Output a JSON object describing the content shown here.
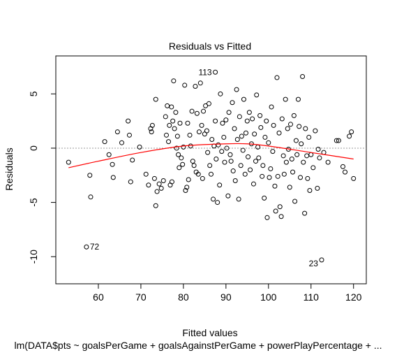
{
  "chart_data": {
    "type": "scatter",
    "title": "Residuals vs Fitted",
    "xlabel": "Fitted values",
    "ylabel": "Residuals",
    "subtitle": "lm(DATA$pts ~ goalsPerGame + goalsAgainstPerGame + powerPlayPercentage + ...",
    "xlim": [
      50,
      123
    ],
    "ylim": [
      -12.5,
      8.5
    ],
    "x_ticks": [
      60,
      70,
      80,
      90,
      100,
      110,
      120
    ],
    "y_ticks": [
      -10,
      -5,
      0,
      5
    ],
    "x_tick_labels": [
      "60",
      "70",
      "80",
      "90",
      "100",
      "110",
      "120"
    ],
    "y_tick_labels": [
      "-10",
      "-5",
      "0",
      "5"
    ],
    "reference_line": 0,
    "labeled_points": [
      {
        "label": "113",
        "x": 87.5,
        "y": 7.0
      },
      {
        "label": "72",
        "x": 57.2,
        "y": -9.1
      },
      {
        "label": "23",
        "x": 112.5,
        "y": -10.3
      }
    ],
    "smooth_line": {
      "x": [
        53,
        60,
        70,
        80,
        90,
        95,
        100,
        110,
        120
      ],
      "y": [
        -1.8,
        -1.2,
        -0.4,
        0.2,
        0.4,
        0.4,
        0.2,
        -0.4,
        -1.0
      ]
    },
    "points": [
      [
        53,
        -1.3
      ],
      [
        58,
        -2.5
      ],
      [
        58.2,
        -4.5
      ],
      [
        61.5,
        0.6
      ],
      [
        62.5,
        -0.6
      ],
      [
        63.3,
        -1.5
      ],
      [
        63.5,
        -2.7
      ],
      [
        64.5,
        1.5
      ],
      [
        65.5,
        0.5
      ],
      [
        67,
        2.5
      ],
      [
        67.3,
        1.2
      ],
      [
        67.6,
        -3.1
      ],
      [
        68,
        -1.1
      ],
      [
        69.7,
        0.1
      ],
      [
        71.2,
        -2.4
      ],
      [
        71.8,
        -3.4
      ],
      [
        72.3,
        1.8
      ],
      [
        72.5,
        1.5
      ],
      [
        72.7,
        2.1
      ],
      [
        73.2,
        -2.8
      ],
      [
        73.5,
        4.5
      ],
      [
        73.5,
        -5.3
      ],
      [
        73.8,
        -4.0
      ],
      [
        74.3,
        -3.3
      ],
      [
        74.8,
        -3.7
      ],
      [
        75.3,
        -3.0
      ],
      [
        75.8,
        2.9
      ],
      [
        76.0,
        1.2
      ],
      [
        76.2,
        3.9
      ],
      [
        76.5,
        0.6
      ],
      [
        76.7,
        2.1
      ],
      [
        76.9,
        -3.4
      ],
      [
        77.2,
        3.8
      ],
      [
        77.3,
        -3.1
      ],
      [
        77.5,
        2.5
      ],
      [
        77.7,
        6.2
      ],
      [
        77.9,
        1.8
      ],
      [
        78.2,
        3.3
      ],
      [
        78.4,
        0.0
      ],
      [
        78.6,
        1.1
      ],
      [
        78.8,
        -0.6
      ],
      [
        79.0,
        -1.8
      ],
      [
        79.2,
        2.3
      ],
      [
        79.5,
        -0.9
      ],
      [
        79.8,
        -1.5
      ],
      [
        80.0,
        0.1
      ],
      [
        80.3,
        5.8
      ],
      [
        80.5,
        -3.9
      ],
      [
        80.8,
        -3.6
      ],
      [
        81.0,
        2.3
      ],
      [
        81.2,
        -2.9
      ],
      [
        81.5,
        1.2
      ],
      [
        81.7,
        0.2
      ],
      [
        82.0,
        3.4
      ],
      [
        82.2,
        -1.2
      ],
      [
        82.5,
        -1.6
      ],
      [
        82.8,
        5.7
      ],
      [
        83.0,
        -2.2
      ],
      [
        83.2,
        3.2
      ],
      [
        83.5,
        -2.4
      ],
      [
        83.7,
        1.5
      ],
      [
        84.0,
        6.0
      ],
      [
        84.3,
        2.1
      ],
      [
        84.5,
        -2.8
      ],
      [
        84.7,
        3.4
      ],
      [
        85.0,
        1.3
      ],
      [
        85.2,
        3.9
      ],
      [
        85.5,
        1.6
      ],
      [
        85.7,
        -0.4
      ],
      [
        86.0,
        4.1
      ],
      [
        86.2,
        -1.6
      ],
      [
        86.5,
        -2.4
      ],
      [
        86.7,
        0.8
      ],
      [
        87.0,
        -4.7
      ],
      [
        87.2,
        0.2
      ],
      [
        87.5,
        2.5
      ],
      [
        87.7,
        -1.0
      ],
      [
        88.0,
        -5.0
      ],
      [
        88.2,
        0.3
      ],
      [
        88.5,
        -3.4
      ],
      [
        88.7,
        5.0
      ],
      [
        89.0,
        -0.3
      ],
      [
        89.2,
        2.3
      ],
      [
        89.5,
        1.0
      ],
      [
        89.7,
        -1.3
      ],
      [
        90.0,
        2.6
      ],
      [
        90.2,
        0.0
      ],
      [
        90.5,
        -4.4
      ],
      [
        90.7,
        3.3
      ],
      [
        91.0,
        -0.6
      ],
      [
        91.2,
        -1.2
      ],
      [
        91.5,
        4.2
      ],
      [
        91.7,
        -2.1
      ],
      [
        92.0,
        1.8
      ],
      [
        92.2,
        -3.0
      ],
      [
        92.5,
        5.4
      ],
      [
        92.7,
        0.8
      ],
      [
        93.0,
        -4.7
      ],
      [
        93.2,
        2.9
      ],
      [
        93.5,
        -1.6
      ],
      [
        93.7,
        1.1
      ],
      [
        94.0,
        -0.2
      ],
      [
        94.2,
        4.5
      ],
      [
        94.5,
        -2.4
      ],
      [
        94.7,
        1.4
      ],
      [
        95.0,
        2.5
      ],
      [
        95.2,
        -0.8
      ],
      [
        95.5,
        3.3
      ],
      [
        95.7,
        -2.0
      ],
      [
        96.0,
        0.4
      ],
      [
        96.2,
        2.7
      ],
      [
        96.5,
        -3.3
      ],
      [
        96.7,
        1.3
      ],
      [
        97.0,
        -1.2
      ],
      [
        97.2,
        4.9
      ],
      [
        97.5,
        0.1
      ],
      [
        97.7,
        -0.9
      ],
      [
        98.0,
        3.0
      ],
      [
        98.2,
        1.9
      ],
      [
        98.5,
        -2.6
      ],
      [
        98.7,
        -1.6
      ],
      [
        99.0,
        -4.6
      ],
      [
        99.2,
        1.0
      ],
      [
        99.5,
        2.5
      ],
      [
        99.7,
        -6.4
      ],
      [
        100.0,
        0.5
      ],
      [
        100.2,
        -2.7
      ],
      [
        100.5,
        -1.9
      ],
      [
        100.7,
        3.8
      ],
      [
        101.0,
        -0.3
      ],
      [
        101.2,
        2.1
      ],
      [
        101.5,
        -3.5
      ],
      [
        101.7,
        -5.8
      ],
      [
        102.0,
        6.5
      ],
      [
        102.2,
        -2.6
      ],
      [
        102.5,
        1.4
      ],
      [
        102.7,
        -5.4
      ],
      [
        103.0,
        -6.3
      ],
      [
        103.2,
        2.7
      ],
      [
        103.5,
        -0.7
      ],
      [
        103.7,
        -2.4
      ],
      [
        104.0,
        4.5
      ],
      [
        104.2,
        -1.3
      ],
      [
        104.5,
        1.8
      ],
      [
        104.7,
        -0.1
      ],
      [
        105.0,
        -3.6
      ],
      [
        105.2,
        2.2
      ],
      [
        105.5,
        -1.0
      ],
      [
        105.7,
        -2.2
      ],
      [
        106.0,
        3.0
      ],
      [
        106.2,
        -4.9
      ],
      [
        106.5,
        0.7
      ],
      [
        106.7,
        -0.6
      ],
      [
        107.0,
        4.5
      ],
      [
        107.2,
        2.0
      ],
      [
        107.5,
        -2.7
      ],
      [
        107.7,
        0.4
      ],
      [
        108.0,
        6.6
      ],
      [
        108.2,
        -1.3
      ],
      [
        108.5,
        -6.0
      ],
      [
        108.7,
        1.8
      ],
      [
        109.0,
        -0.7
      ],
      [
        109.2,
        -2.8
      ],
      [
        109.5,
        1.0
      ],
      [
        109.7,
        -3.9
      ],
      [
        110.0,
        -0.6
      ],
      [
        110.5,
        -1.8
      ],
      [
        111.0,
        1.6
      ],
      [
        111.5,
        -3.7
      ],
      [
        111.7,
        -0.1
      ],
      [
        112.0,
        -0.9
      ],
      [
        113.0,
        -0.4
      ],
      [
        114.0,
        -1.3
      ],
      [
        116.0,
        0.7
      ],
      [
        116.5,
        0.7
      ],
      [
        117.5,
        -1.7
      ],
      [
        118.0,
        -2.2
      ],
      [
        119.0,
        1.1
      ],
      [
        119.5,
        1.5
      ],
      [
        120.0,
        -2.8
      ]
    ],
    "labeled_point_markers": [
      [
        87.5,
        7.0
      ],
      [
        57.2,
        -9.1
      ],
      [
        112.5,
        -10.3
      ]
    ],
    "colors": {
      "points": "#000000",
      "smooth": "#ff0000",
      "reference": "#999999"
    }
  }
}
